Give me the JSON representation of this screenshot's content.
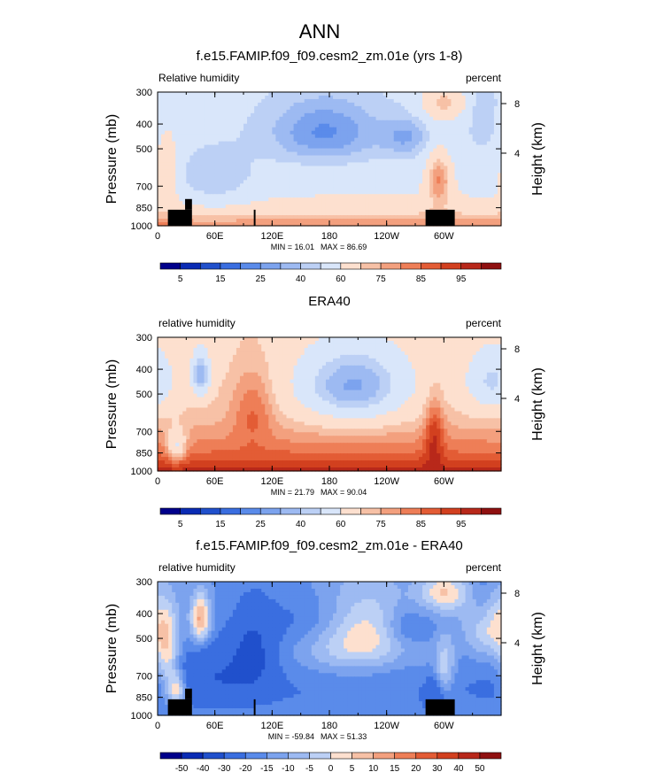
{
  "figure": {
    "title": "ANN"
  },
  "colors": {
    "blues": [
      "#00008b",
      "#0a2bb4",
      "#2050cc",
      "#3a6ee0",
      "#5a8bea",
      "#7ca3ee",
      "#9dbaf2",
      "#bcd0f5",
      "#d9e6fa"
    ],
    "reds": [
      "#fde0cf",
      "#f7c1a6",
      "#f3a07e",
      "#ee7e57",
      "#e35c35",
      "#d2401f",
      "#b8281a",
      "#8f1010"
    ],
    "topography": "#000000"
  },
  "chart_data": [
    {
      "type": "heatmap",
      "title": "f.e15.FAMIP.f09_f09.cesm2_zm.01e (yrs 1-8)",
      "left_label": "Relative humidity",
      "right_label": "percent",
      "ylabel": "Pressure (mb)",
      "ylabel_right": "Height (km)",
      "x_ticks": [
        "0",
        "60E",
        "120E",
        "180",
        "120W",
        "60W"
      ],
      "y_ticks": [
        "300",
        "400",
        "500",
        "700",
        "850",
        "1000"
      ],
      "height_ticks": [
        "8",
        "4"
      ],
      "min_label": "MIN = 16.01",
      "max_label": "MAX = 86.69",
      "colorbar_labels": [
        "5",
        "15",
        "25",
        "40",
        "60",
        "75",
        "85",
        "95"
      ],
      "colorbar_levels": [
        5,
        10,
        15,
        20,
        25,
        30,
        35,
        40,
        50,
        60,
        65,
        70,
        75,
        80,
        85,
        90,
        95
      ],
      "minimum": 16.01,
      "maximum": 86.69
    },
    {
      "type": "heatmap",
      "title": "ERA40",
      "left_label": "relative humidity",
      "right_label": "percent",
      "ylabel": "Pressure (mb)",
      "ylabel_right": "Height (km)",
      "x_ticks": [
        "0",
        "60E",
        "120E",
        "180",
        "120W",
        "60W"
      ],
      "y_ticks": [
        "300",
        "400",
        "500",
        "700",
        "850",
        "1000"
      ],
      "height_ticks": [
        "8",
        "4"
      ],
      "min_label": "MIN = 21.79",
      "max_label": "MAX = 90.04",
      "colorbar_labels": [
        "5",
        "15",
        "25",
        "40",
        "60",
        "75",
        "85",
        "95"
      ],
      "colorbar_levels": [
        5,
        10,
        15,
        20,
        25,
        30,
        35,
        40,
        50,
        60,
        65,
        70,
        75,
        80,
        85,
        90,
        95
      ],
      "minimum": 21.79,
      "maximum": 90.04
    },
    {
      "type": "heatmap",
      "title": "f.e15.FAMIP.f09_f09.cesm2_zm.01e - ERA40",
      "left_label": "relative humidity",
      "right_label": "percent",
      "ylabel": "Pressure (mb)",
      "ylabel_right": "Height (km)",
      "x_ticks": [
        "0",
        "60E",
        "120E",
        "180",
        "120W",
        "60W"
      ],
      "y_ticks": [
        "300",
        "400",
        "500",
        "700",
        "850",
        "1000"
      ],
      "height_ticks": [
        "8",
        "4"
      ],
      "min_label": "MIN = -59.84",
      "max_label": "MAX = 51.33",
      "colorbar_labels": [
        "-50",
        "-40",
        "-30",
        "-20",
        "-15",
        "-10",
        "-5",
        "0",
        "5",
        "10",
        "15",
        "20",
        "30",
        "40",
        "50"
      ],
      "colorbar_levels": [
        -50,
        -40,
        -30,
        -20,
        -15,
        -10,
        -5,
        0,
        5,
        10,
        15,
        20,
        30,
        40,
        50
      ],
      "minimum": -59.84,
      "maximum": 51.33
    }
  ]
}
